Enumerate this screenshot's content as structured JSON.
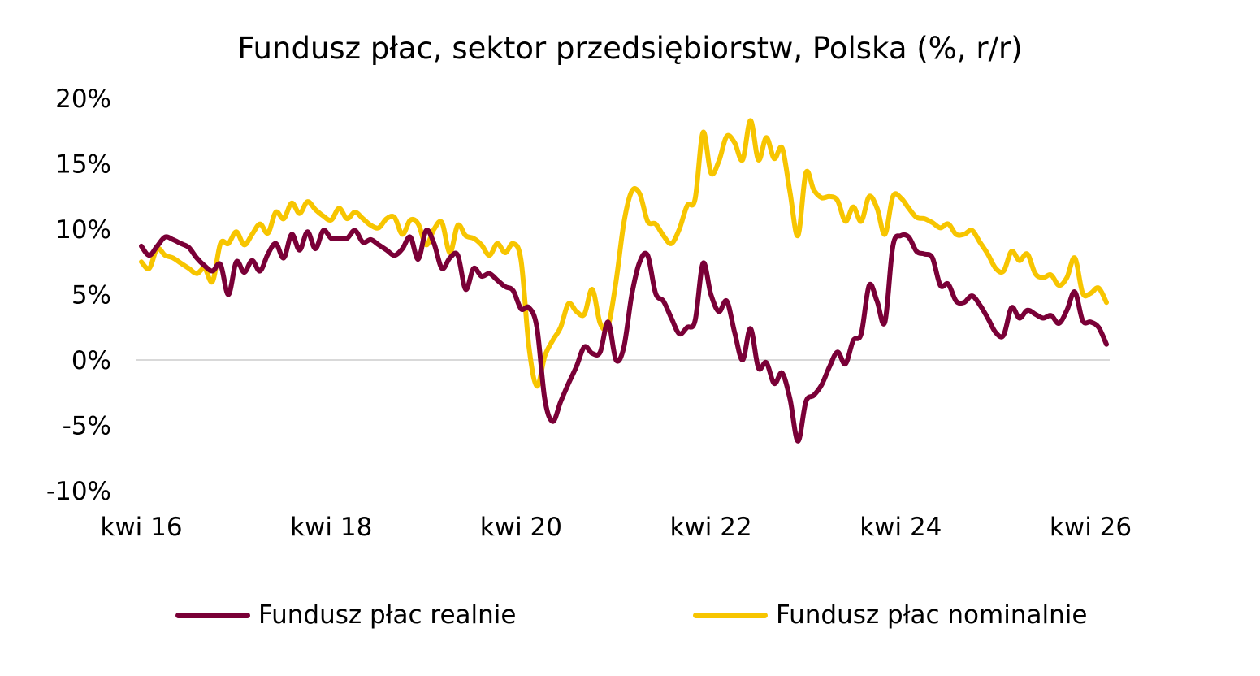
{
  "chart_data": {
    "type": "line",
    "title": "Fundusz płac, sektor przedsiębiorstw, Polska (%, r/r)",
    "xlabel": "",
    "ylabel": "",
    "ylim": [
      -10,
      20
    ],
    "y_ticks": [
      20,
      15,
      10,
      5,
      0,
      -5,
      -10
    ],
    "y_tick_labels": [
      "20%",
      "15%",
      "10%",
      "5%",
      "0%",
      "-5%",
      "-10%"
    ],
    "x_tick_labels": [
      "kwi 16",
      "kwi 18",
      "kwi 20",
      "kwi 22",
      "kwi 24",
      "kwi 26"
    ],
    "grid": false,
    "zero_line": true,
    "legend_position": "bottom",
    "x_start": "2016-04",
    "series": [
      {
        "name": "Fundusz płac realnie",
        "color": "#7a0037",
        "values": [
          8.7,
          8.0,
          8.7,
          9.4,
          9.2,
          8.9,
          8.6,
          7.8,
          7.2,
          6.8,
          7.3,
          5.0,
          7.5,
          6.7,
          7.6,
          6.8,
          8.1,
          8.9,
          7.8,
          9.6,
          8.4,
          9.8,
          8.5,
          9.9,
          9.3,
          9.3,
          9.3,
          9.9,
          9.0,
          9.2,
          8.8,
          8.4,
          8.0,
          8.5,
          9.4,
          7.7,
          9.9,
          8.9,
          7.0,
          7.8,
          8.0,
          5.4,
          7.0,
          6.4,
          6.6,
          6.1,
          5.6,
          5.3,
          3.9,
          4.0,
          2.5,
          -3.0,
          -4.7,
          -3.2,
          -1.8,
          -0.5,
          1.0,
          0.5,
          0.6,
          2.9,
          0.0,
          1.0,
          5.0,
          7.5,
          8.0,
          5.1,
          4.5,
          3.2,
          2.0,
          2.5,
          3.0,
          7.4,
          5.0,
          3.7,
          4.5,
          2.1,
          0.0,
          2.4,
          -0.6,
          -0.2,
          -1.8,
          -1.0,
          -3.0,
          -6.2,
          -3.2,
          -2.7,
          -1.9,
          -0.5,
          0.6,
          -0.3,
          1.5,
          2.0,
          5.7,
          4.5,
          2.9,
          8.7,
          9.5,
          9.4,
          8.3,
          8.1,
          7.8,
          5.7,
          5.8,
          4.5,
          4.4,
          4.9,
          4.2,
          3.2,
          2.1,
          1.9,
          4.0,
          3.2,
          3.8,
          3.5,
          3.2,
          3.4,
          2.8,
          3.8,
          5.2,
          3.0,
          2.9,
          2.5,
          1.2
        ]
      },
      {
        "name": "Fundusz płac nominalnie",
        "color": "#f7c500",
        "values": [
          7.5,
          7.0,
          8.5,
          8.0,
          7.8,
          7.4,
          7.0,
          6.6,
          7.0,
          6.0,
          8.9,
          8.9,
          9.8,
          8.8,
          9.6,
          10.4,
          9.7,
          11.3,
          10.8,
          12.0,
          11.2,
          12.1,
          11.5,
          11.0,
          10.7,
          11.6,
          10.8,
          11.3,
          10.8,
          10.3,
          10.1,
          10.8,
          10.9,
          9.6,
          10.7,
          10.4,
          8.8,
          10.0,
          10.5,
          8.2,
          10.3,
          9.5,
          9.3,
          8.8,
          8.0,
          8.9,
          8.2,
          8.9,
          7.6,
          1.0,
          -2.0,
          0.3,
          1.5,
          2.5,
          4.3,
          3.7,
          3.5,
          5.4,
          2.8,
          2.6,
          6.0,
          10.5,
          12.9,
          12.7,
          10.6,
          10.4,
          9.5,
          8.9,
          10.0,
          11.8,
          12.3,
          17.4,
          14.3,
          15.2,
          17.1,
          16.6,
          15.3,
          18.3,
          15.3,
          17.0,
          15.4,
          16.2,
          12.8,
          9.5,
          14.3,
          13.0,
          12.4,
          12.5,
          12.2,
          10.6,
          11.7,
          10.6,
          12.5,
          11.6,
          9.6,
          12.5,
          12.4,
          11.6,
          10.9,
          10.8,
          10.5,
          10.1,
          10.4,
          9.6,
          9.6,
          9.9,
          9.0,
          8.1,
          7.0,
          6.8,
          8.3,
          7.6,
          8.1,
          6.6,
          6.3,
          6.5,
          5.7,
          6.3,
          7.8,
          5.1,
          5.1,
          5.5,
          4.4
        ]
      }
    ]
  },
  "legend": {
    "items": [
      {
        "label": "Fundusz płac realnie",
        "color": "#7a0037"
      },
      {
        "label": "Fundusz płac nominalnie",
        "color": "#f7c500"
      }
    ]
  },
  "colors": {
    "zero_line": "#d9d9d9",
    "text": "#000000",
    "background": "#ffffff"
  }
}
